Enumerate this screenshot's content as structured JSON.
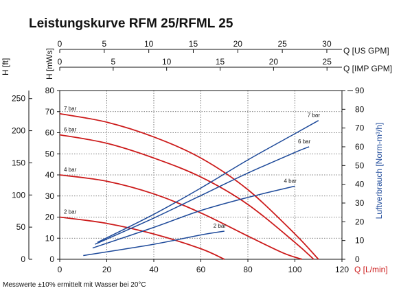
{
  "page": {
    "title": "Leistungskurve RFM 25/RFML 25",
    "footnote": "Messwerte ±10% ermittelt mit Wasser bei 20°C"
  },
  "chart_data": {
    "type": "line",
    "title": "Leistungskurve RFM 25/RFML 25",
    "xlabel": "Q [L/min]",
    "xlim": [
      0,
      120
    ],
    "x_ticks": [
      "0",
      "20",
      "40",
      "60",
      "80",
      "100",
      "120"
    ],
    "ylabel_left_inner": "H [mWs]",
    "ylim_left_inner": [
      0,
      80
    ],
    "y_ticks_left_inner": [
      "0",
      "10",
      "20",
      "30",
      "40",
      "50",
      "60",
      "70",
      "80"
    ],
    "ylabel_left_outer": "H [ft]",
    "ylim_left_outer": [
      0,
      262.5
    ],
    "y_ticks_left_outer": [
      "0",
      "50",
      "100",
      "150",
      "200",
      "250"
    ],
    "ylabel_right": "Luftverbrauch [Norm-m³/h]",
    "ylim_right": [
      0,
      90
    ],
    "y_ticks_right": [
      "0",
      "10",
      "20",
      "30",
      "40",
      "50",
      "60",
      "70",
      "80",
      "90"
    ],
    "top_axes": [
      {
        "label": "Q [US GPM]",
        "lim": [
          0,
          31.7
        ],
        "ticks": [
          "0",
          "5",
          "10",
          "15",
          "20",
          "25",
          "30"
        ]
      },
      {
        "label": "Q [IMP GPM]",
        "lim": [
          0,
          26.4
        ],
        "ticks": [
          "0",
          "5",
          "10",
          "15",
          "20",
          "25"
        ]
      }
    ],
    "grid": true,
    "colors": {
      "head": "#cc1a1a",
      "air": "#1e4a9a",
      "grid": "#555555"
    },
    "head_curves": [
      {
        "label": "7 bar",
        "x": [
          0,
          20,
          40,
          60,
          80,
          100,
          110
        ],
        "y": [
          69,
          65,
          58,
          48,
          33,
          12,
          0
        ]
      },
      {
        "label": "6 bar",
        "x": [
          0,
          20,
          40,
          60,
          80,
          100,
          108
        ],
        "y": [
          59,
          55,
          48,
          39,
          26,
          8,
          0
        ]
      },
      {
        "label": "4 bar",
        "x": [
          0,
          20,
          40,
          60,
          80,
          95,
          103
        ],
        "y": [
          40,
          37,
          31,
          22,
          11,
          3,
          0
        ]
      },
      {
        "label": "2 bar",
        "x": [
          0,
          20,
          40,
          60,
          70
        ],
        "y": [
          20,
          17,
          12,
          5,
          0
        ]
      }
    ],
    "air_curves": [
      {
        "label": "7 bar",
        "x": [
          16,
          40,
          60,
          80,
          100,
          110
        ],
        "y": [
          9,
          24,
          38,
          53,
          67,
          74
        ]
      },
      {
        "label": "6 bar",
        "x": [
          15,
          40,
          60,
          80,
          100,
          106
        ],
        "y": [
          8,
          22,
          34,
          46,
          57,
          60
        ]
      },
      {
        "label": "4 bar",
        "x": [
          14,
          40,
          60,
          80,
          100
        ],
        "y": [
          6,
          17,
          26,
          33,
          39
        ]
      },
      {
        "label": "2 bar",
        "x": [
          10,
          40,
          60,
          70
        ],
        "y": [
          2,
          8,
          13,
          15
        ]
      }
    ]
  }
}
